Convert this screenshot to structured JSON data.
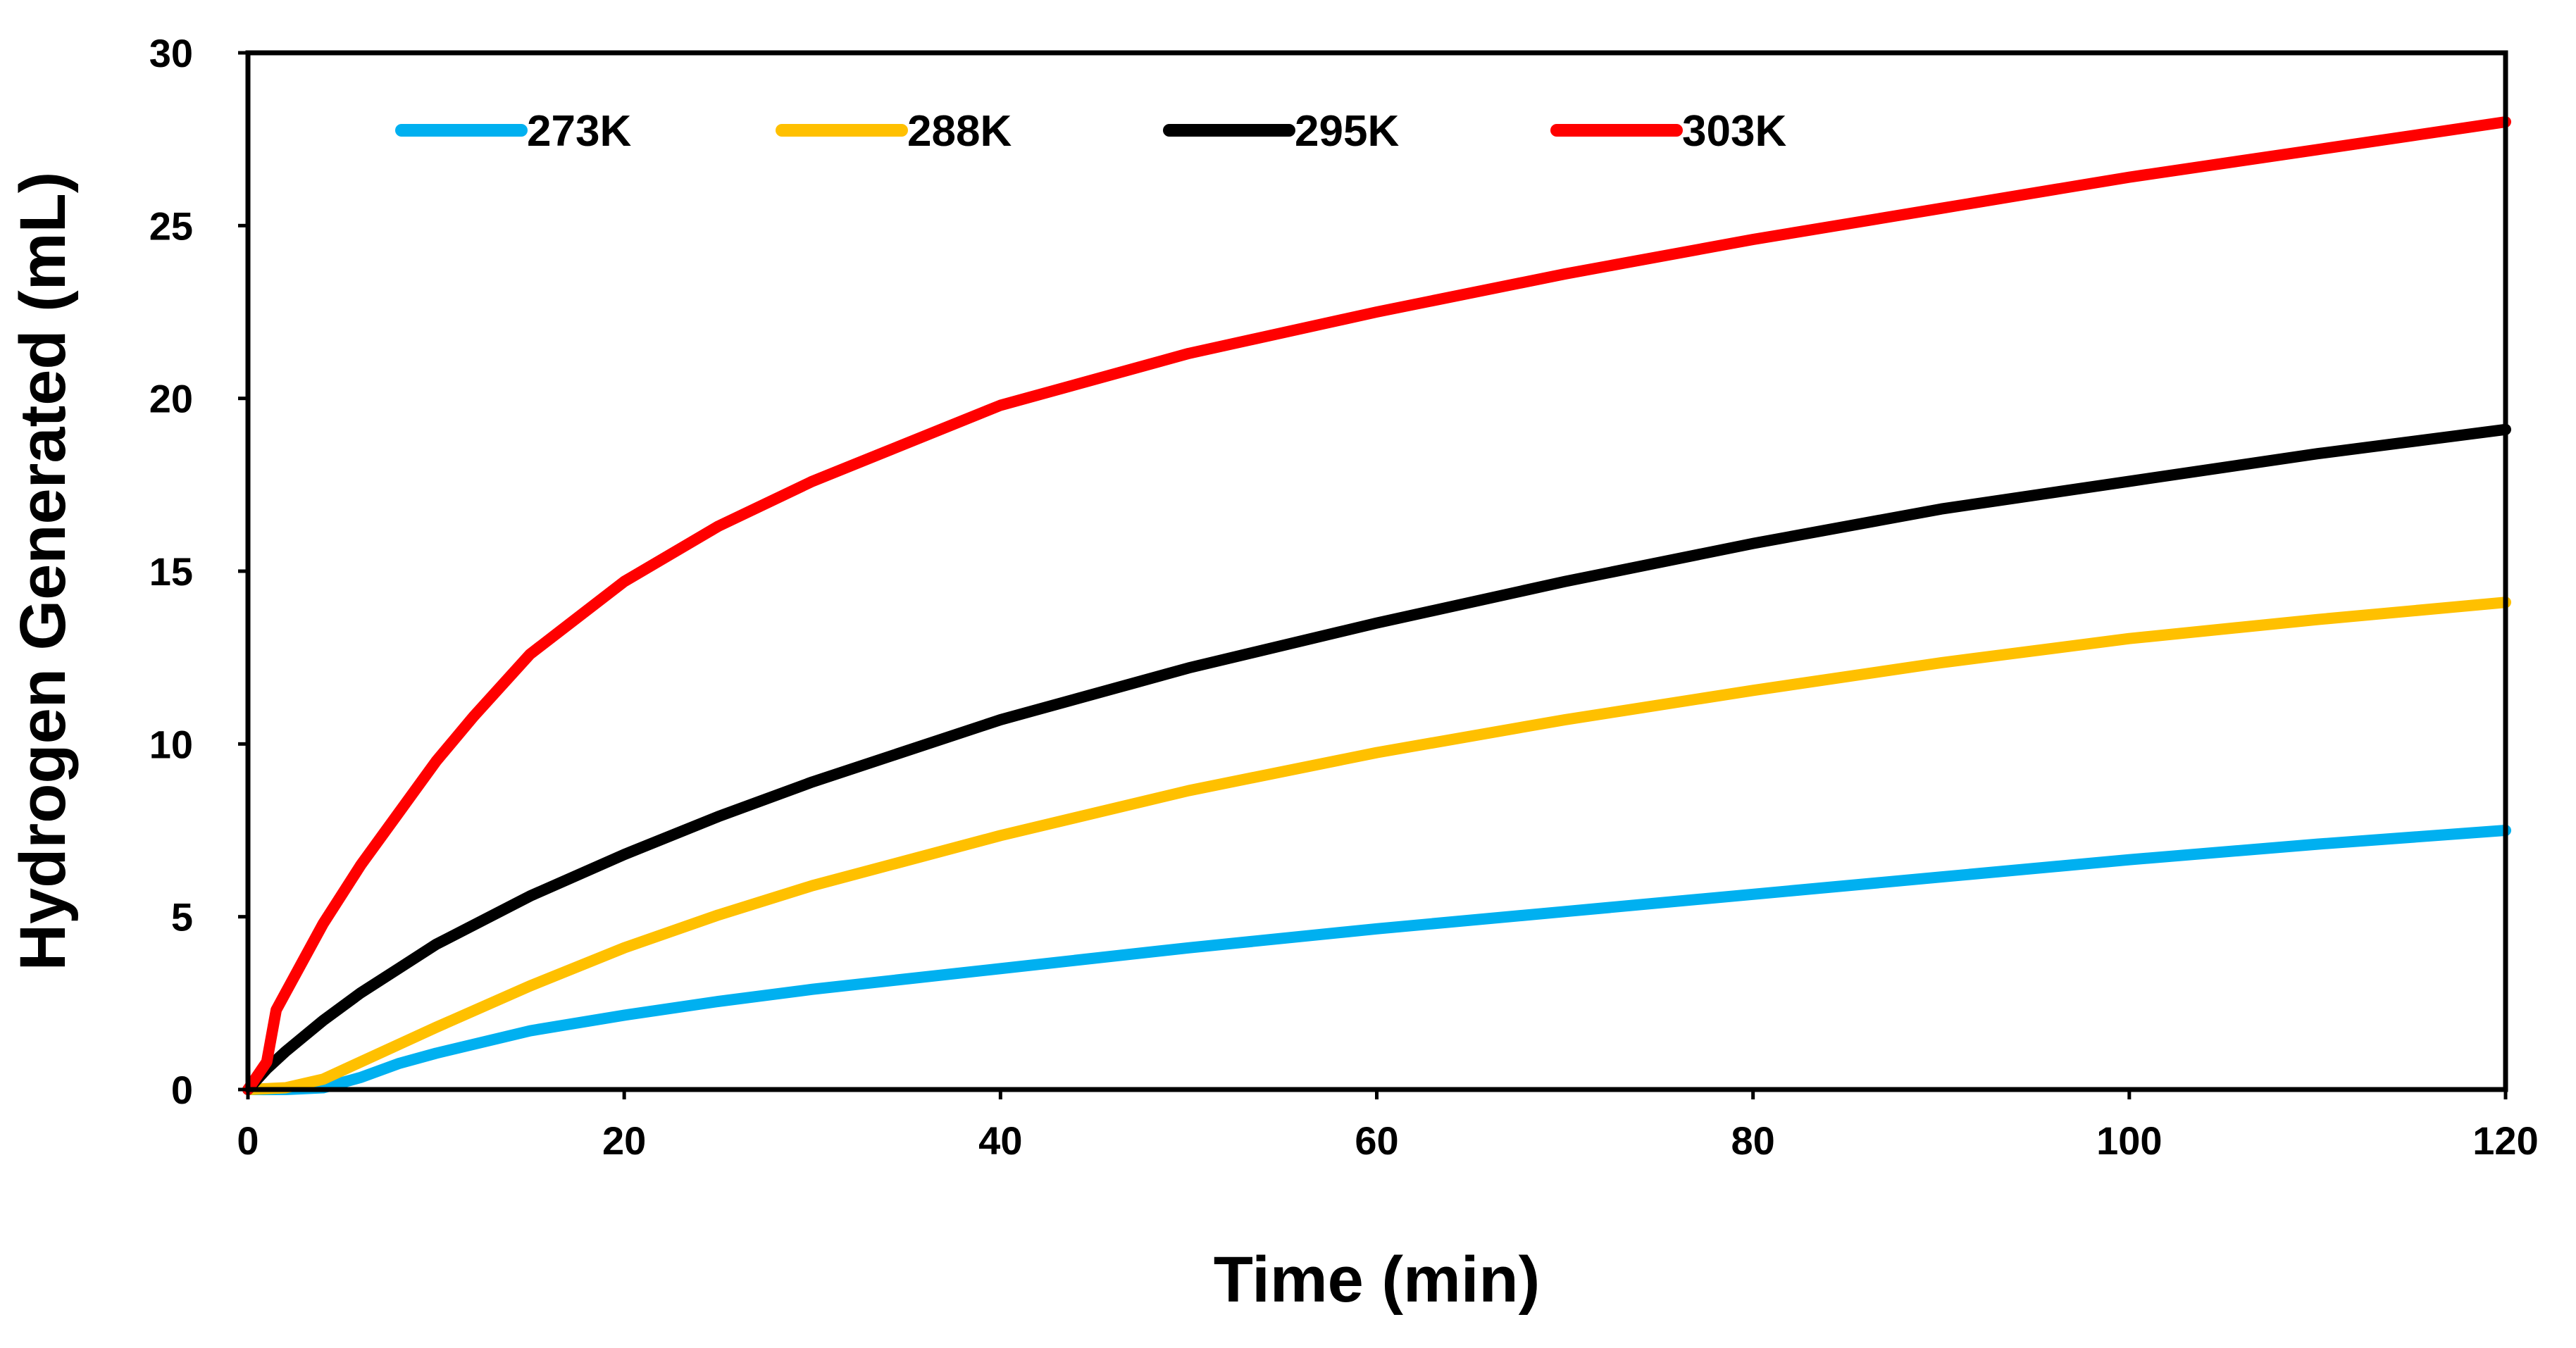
{
  "chart_data": {
    "type": "line",
    "title": "",
    "xlabel": "Time (min)",
    "ylabel": "Hydrogen Generated (mL)",
    "xlim": [
      0,
      120
    ],
    "ylim": [
      0,
      30
    ],
    "xticks": [
      0,
      20,
      40,
      60,
      80,
      100,
      120
    ],
    "yticks": [
      0,
      5,
      10,
      15,
      20,
      25,
      30
    ],
    "grid": false,
    "legend_position": "top",
    "series": [
      {
        "name": "273K",
        "color": "#00b0f0",
        "x": [
          0,
          2,
          4,
          6,
          8,
          10,
          15,
          20,
          25,
          30,
          40,
          50,
          60,
          70,
          80,
          90,
          100,
          110,
          120
        ],
        "y": [
          0,
          0,
          0.05,
          0.35,
          0.75,
          1.05,
          1.7,
          2.15,
          2.55,
          2.9,
          3.5,
          4.1,
          4.65,
          5.15,
          5.65,
          6.15,
          6.65,
          7.1,
          7.5
        ]
      },
      {
        "name": "288K",
        "color": "#ffc000",
        "x": [
          0,
          2,
          4,
          6,
          8,
          10,
          15,
          20,
          25,
          30,
          40,
          50,
          60,
          70,
          80,
          90,
          100,
          110,
          120
        ],
        "y": [
          0,
          0.05,
          0.3,
          0.8,
          1.3,
          1.8,
          3.0,
          4.1,
          5.05,
          5.9,
          7.35,
          8.65,
          9.75,
          10.7,
          11.55,
          12.35,
          13.05,
          13.6,
          14.1
        ]
      },
      {
        "name": "295K",
        "color": "#000000",
        "x": [
          0,
          1,
          2,
          4,
          6,
          8,
          10,
          15,
          20,
          25,
          30,
          40,
          50,
          60,
          70,
          80,
          90,
          100,
          110,
          120
        ],
        "y": [
          0,
          0.6,
          1.1,
          2.0,
          2.8,
          3.5,
          4.2,
          5.6,
          6.8,
          7.9,
          8.9,
          10.7,
          12.2,
          13.5,
          14.7,
          15.8,
          16.8,
          17.6,
          18.4,
          19.1
        ]
      },
      {
        "name": "303K",
        "color": "#ff0000",
        "x": [
          0,
          1,
          1.5,
          2,
          3,
          4,
          6,
          8,
          10,
          12,
          15,
          20,
          25,
          30,
          40,
          50,
          60,
          70,
          80,
          90,
          100,
          110,
          120
        ],
        "y": [
          0,
          0.8,
          2.3,
          2.8,
          3.8,
          4.8,
          6.5,
          8.0,
          9.5,
          10.8,
          12.6,
          14.7,
          16.3,
          17.6,
          19.8,
          21.3,
          22.5,
          23.6,
          24.6,
          25.5,
          26.4,
          27.2,
          28.0
        ]
      }
    ]
  }
}
